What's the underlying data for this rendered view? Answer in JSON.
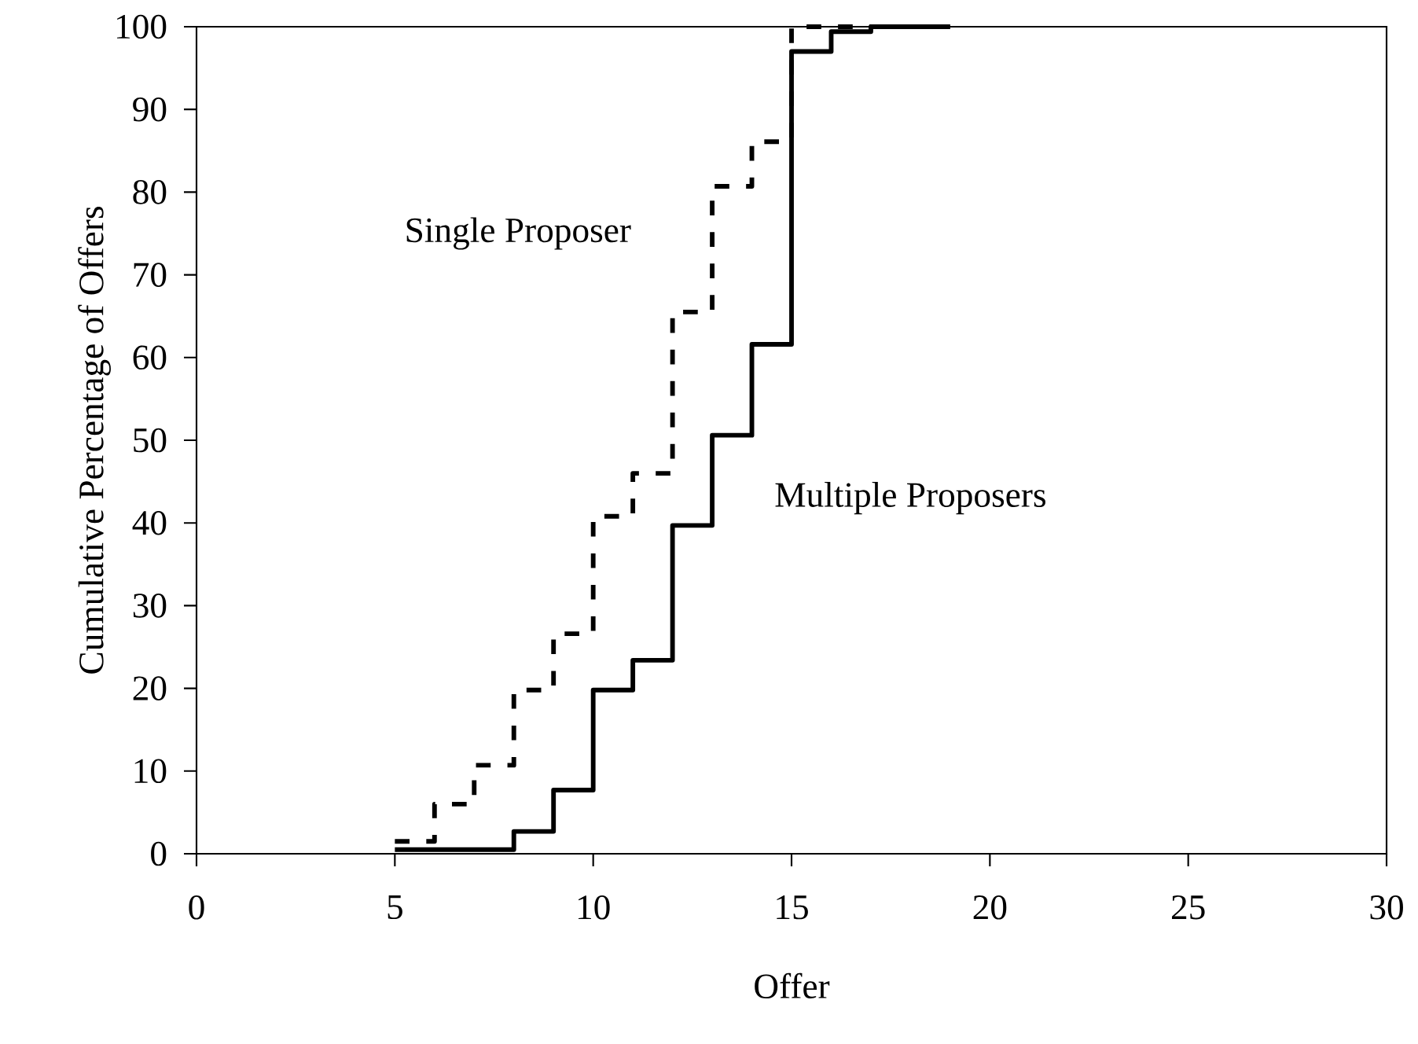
{
  "chart_data": {
    "type": "step",
    "xlabel": "Offer",
    "ylabel": "Cumulative Percentage of Offers",
    "xlim": [
      0,
      30
    ],
    "xticks": [
      0,
      5,
      10,
      15,
      20,
      25,
      30
    ],
    "ylim": [
      0,
      100
    ],
    "yticks": [
      0,
      10,
      20,
      30,
      40,
      50,
      60,
      70,
      80,
      90,
      100
    ],
    "grid": false,
    "legend": false,
    "marker": "none",
    "series": [
      {
        "name": "Single Proposer",
        "color": "#000000",
        "line_style": "dashed",
        "x": [
          5,
          6,
          7,
          8,
          9,
          10,
          11,
          12,
          13,
          14,
          15,
          19
        ],
        "values": [
          1.5,
          6,
          10.7,
          19.8,
          26.6,
          40.8,
          46,
          65.5,
          80.7,
          86.1,
          100,
          100
        ]
      },
      {
        "name": "Multiple Proposers",
        "color": "#000000",
        "line_style": "solid",
        "x": [
          5,
          8,
          9,
          10,
          11,
          12,
          13,
          14,
          15,
          16,
          17,
          19
        ],
        "values": [
          0.5,
          2.7,
          7.7,
          19.8,
          23.4,
          39.7,
          50.6,
          61.6,
          97,
          99.4,
          100,
          100
        ]
      }
    ]
  }
}
